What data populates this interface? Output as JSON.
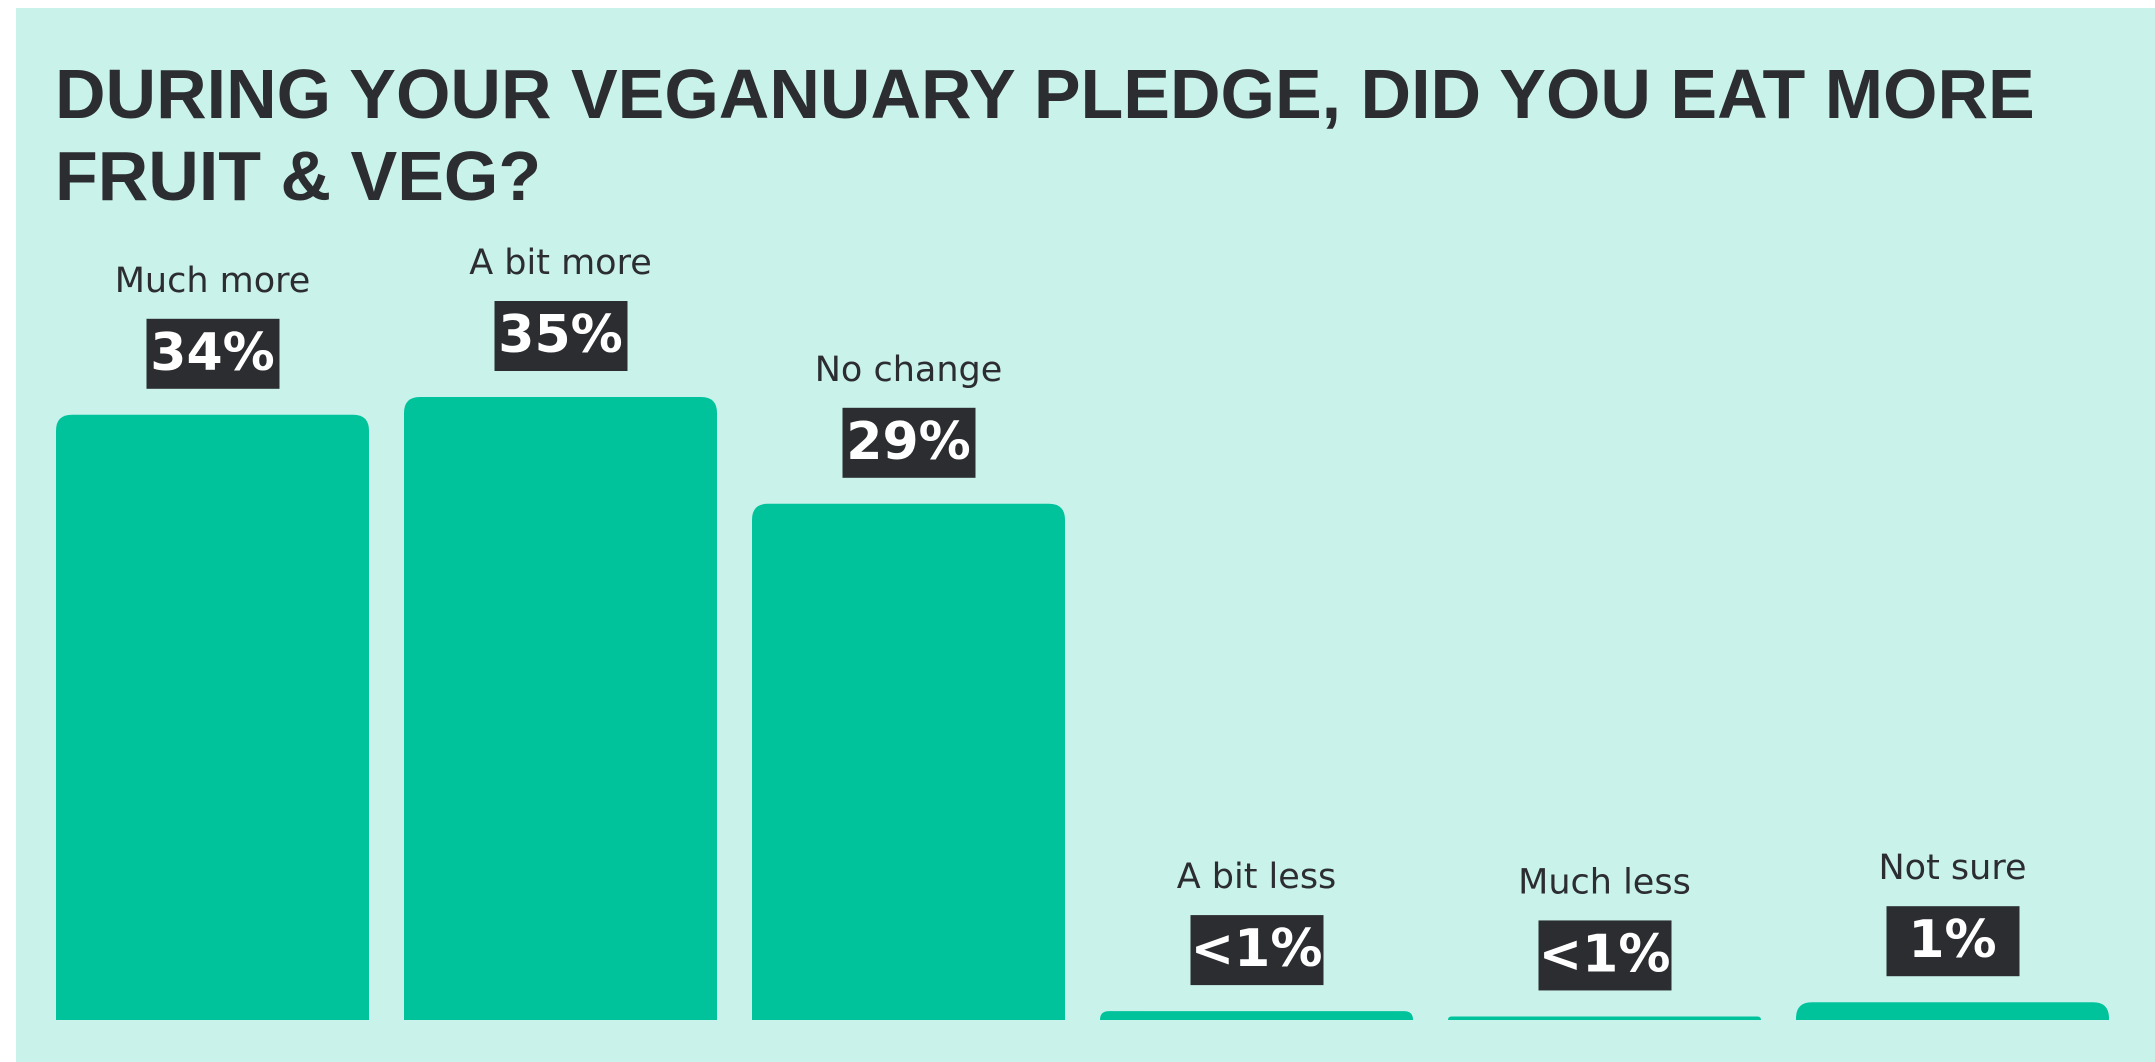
{
  "chart_data": {
    "type": "bar",
    "title": "DURING YOUR VEGANUARY PLEDGE, DID YOU EAT MORE FRUIT & VEG?",
    "categories": [
      "Much more",
      "A bit more",
      "No change",
      "A bit less",
      "Much less",
      "Not sure"
    ],
    "values": [
      34,
      35,
      29,
      0.5,
      0.2,
      1
    ],
    "value_labels": [
      "34%",
      "35%",
      "29%",
      "<1%",
      "<1%",
      "1%"
    ],
    "color": "#00c39c"
  }
}
